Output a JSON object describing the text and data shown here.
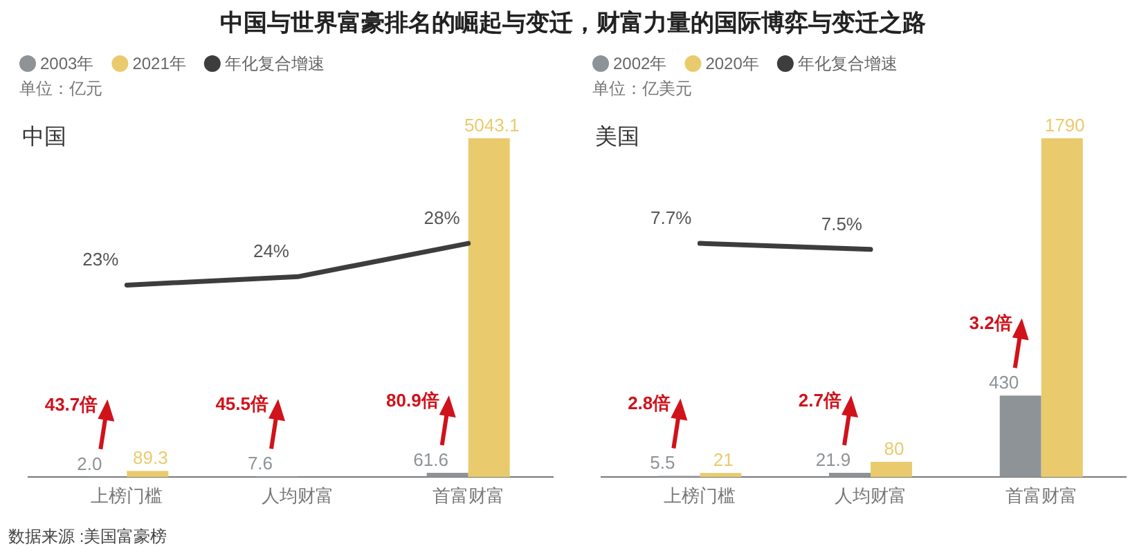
{
  "chart_data": [
    {
      "type": "bar",
      "title": "中国与世界富豪排名的崛起与变迁，财富力量的国际博弈与变迁之路",
      "subtitle": "中国",
      "categories": [
        "上榜门槛",
        "人均财富",
        "首富财富"
      ],
      "legend": "top left",
      "series": [
        {
          "name": "2003年",
          "color": "#8d9397",
          "values": [
            2.0,
            7.6,
            61.6
          ],
          "value_labels": [
            "2.0",
            "7.6",
            "61.6"
          ]
        },
        {
          "name": "2021年",
          "color": "#e9cb6e",
          "values": [
            89.3,
            null,
            5043.1
          ],
          "value_labels": [
            "89.3",
            null,
            "5043.1"
          ]
        },
        {
          "name": "年化复合增速",
          "type": "line",
          "axis": "y2",
          "color": "#3d3d3d",
          "values": [
            23,
            24,
            28
          ],
          "value_labels": [
            "23%",
            "24%",
            "28%"
          ]
        }
      ],
      "annotations": [
        "单位：亿元",
        "43.7倍",
        "45.5倍",
        "80.9倍",
        "数据来源 :美国富豪榜"
      ]
    },
    {
      "type": "bar",
      "subtitle": "美国",
      "categories": [
        "上榜门槛",
        "人均财富",
        "首富财富"
      ],
      "legend": "top left",
      "series": [
        {
          "name": "2002年",
          "color": "#8d9397",
          "values": [
            5.5,
            21.9,
            430
          ],
          "value_labels": [
            "5.5",
            "21.9",
            "430"
          ]
        },
        {
          "name": "2020年",
          "color": "#e9cb6e",
          "values": [
            21,
            80,
            1790
          ],
          "value_labels": [
            "21",
            "80",
            "1790"
          ]
        },
        {
          "name": "年化复合增速",
          "type": "line",
          "axis": "y2",
          "color": "#3d3d3d",
          "values": [
            7.7,
            7.5,
            null
          ],
          "value_labels": [
            "7.7%",
            "7.5%",
            null
          ]
        }
      ],
      "annotations": [
        "单位：亿美元",
        "2.8倍",
        "2.7倍",
        "3.2倍"
      ]
    }
  ]
}
